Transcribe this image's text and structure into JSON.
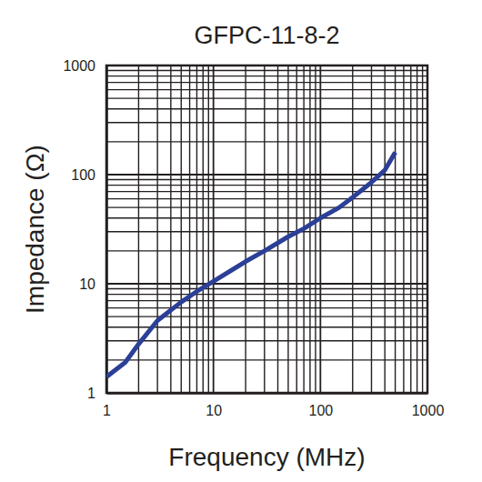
{
  "chart_data": {
    "type": "line",
    "title": "GFPC-11-8-2",
    "x_label": "Frequency (MHz)",
    "y_label": "Impedance (Ω)",
    "x": [
      1,
      1.5,
      2,
      3,
      5,
      7,
      10,
      20,
      30,
      50,
      70,
      100,
      150,
      200,
      300,
      400,
      500
    ],
    "values": [
      1.4,
      1.9,
      2.8,
      4.6,
      6.8,
      8.5,
      10.5,
      16,
      20,
      27,
      32,
      40,
      50,
      62,
      85,
      110,
      160
    ],
    "color": "#2b3f96",
    "line_style": "solid",
    "xlim": [
      1,
      1000
    ],
    "ylim": [
      1,
      1000
    ],
    "xticks": [
      1,
      10,
      100,
      1000
    ],
    "yticks": [
      1,
      10,
      100,
      1000
    ],
    "log": true,
    "grid": true
  }
}
